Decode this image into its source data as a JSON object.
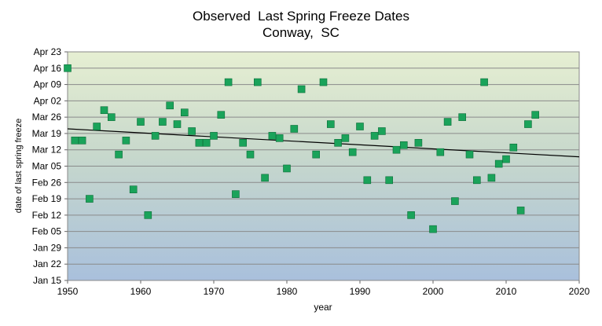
{
  "chart_data": {
    "type": "scatter",
    "title": "Observed  Last Spring Freeze Dates",
    "subtitle": "Conway,  SC",
    "xlabel": "year",
    "ylabel": "date of last spring freeze",
    "xlim": [
      1950,
      2020
    ],
    "xticks": [
      "1950",
      "1960",
      "1970",
      "1980",
      "1990",
      "2000",
      "2010",
      "2020"
    ],
    "ylim": [
      "Jan 15",
      "Apr 23"
    ],
    "yticks": [
      "Jan 15",
      "Jan 22",
      "Jan 29",
      "Feb 05",
      "Feb 12",
      "Feb 19",
      "Feb 26",
      "Mar 05",
      "Mar 12",
      "Mar 19",
      "Mar 26",
      "Apr 02",
      "Apr 09",
      "Apr 16",
      "Apr 23"
    ],
    "grid": true,
    "background": "gradient green to blue",
    "marker_color": "#1aa35a",
    "trendline": {
      "start": [
        1950,
        "Mar 21"
      ],
      "end": [
        2020,
        "Mar 09"
      ],
      "color": "#000000"
    },
    "points": [
      {
        "x": 1950,
        "y": "Apr 16"
      },
      {
        "x": 1951,
        "y": "Mar 16"
      },
      {
        "x": 1952,
        "y": "Mar 16"
      },
      {
        "x": 1953,
        "y": "Feb 19"
      },
      {
        "x": 1954,
        "y": "Mar 22"
      },
      {
        "x": 1955,
        "y": "Mar 29"
      },
      {
        "x": 1956,
        "y": "Mar 26"
      },
      {
        "x": 1957,
        "y": "Mar 10"
      },
      {
        "x": 1958,
        "y": "Mar 16"
      },
      {
        "x": 1959,
        "y": "Feb 23"
      },
      {
        "x": 1960,
        "y": "Mar 24"
      },
      {
        "x": 1961,
        "y": "Feb 12"
      },
      {
        "x": 1962,
        "y": "Mar 18"
      },
      {
        "x": 1963,
        "y": "Mar 24"
      },
      {
        "x": 1964,
        "y": "Mar 31"
      },
      {
        "x": 1965,
        "y": "Mar 23"
      },
      {
        "x": 1966,
        "y": "Mar 28"
      },
      {
        "x": 1967,
        "y": "Mar 20"
      },
      {
        "x": 1968,
        "y": "Mar 15"
      },
      {
        "x": 1969,
        "y": "Mar 15"
      },
      {
        "x": 1970,
        "y": "Mar 18"
      },
      {
        "x": 1971,
        "y": "Mar 27"
      },
      {
        "x": 1972,
        "y": "Apr 10"
      },
      {
        "x": 1973,
        "y": "Feb 21"
      },
      {
        "x": 1974,
        "y": "Mar 15"
      },
      {
        "x": 1975,
        "y": "Mar 10"
      },
      {
        "x": 1976,
        "y": "Apr 10"
      },
      {
        "x": 1977,
        "y": "Feb 28"
      },
      {
        "x": 1978,
        "y": "Mar 18"
      },
      {
        "x": 1979,
        "y": "Mar 17"
      },
      {
        "x": 1980,
        "y": "Mar 04"
      },
      {
        "x": 1981,
        "y": "Mar 21"
      },
      {
        "x": 1982,
        "y": "Apr 07"
      },
      {
        "x": 1984,
        "y": "Mar 10"
      },
      {
        "x": 1985,
        "y": "Apr 10"
      },
      {
        "x": 1986,
        "y": "Mar 23"
      },
      {
        "x": 1987,
        "y": "Mar 15"
      },
      {
        "x": 1988,
        "y": "Mar 17"
      },
      {
        "x": 1989,
        "y": "Mar 11"
      },
      {
        "x": 1990,
        "y": "Mar 22"
      },
      {
        "x": 1991,
        "y": "Feb 27"
      },
      {
        "x": 1992,
        "y": "Mar 18"
      },
      {
        "x": 1993,
        "y": "Mar 20"
      },
      {
        "x": 1994,
        "y": "Feb 27"
      },
      {
        "x": 1995,
        "y": "Mar 12"
      },
      {
        "x": 1996,
        "y": "Mar 14"
      },
      {
        "x": 1997,
        "y": "Feb 12"
      },
      {
        "x": 1998,
        "y": "Mar 15"
      },
      {
        "x": 2000,
        "y": "Feb 06"
      },
      {
        "x": 2001,
        "y": "Mar 11"
      },
      {
        "x": 2002,
        "y": "Mar 24"
      },
      {
        "x": 2003,
        "y": "Feb 18"
      },
      {
        "x": 2004,
        "y": "Mar 26"
      },
      {
        "x": 2005,
        "y": "Mar 10"
      },
      {
        "x": 2006,
        "y": "Feb 27"
      },
      {
        "x": 2007,
        "y": "Apr 10"
      },
      {
        "x": 2008,
        "y": "Feb 28"
      },
      {
        "x": 2009,
        "y": "Mar 06"
      },
      {
        "x": 2010,
        "y": "Mar 08"
      },
      {
        "x": 2011,
        "y": "Mar 13"
      },
      {
        "x": 2012,
        "y": "Feb 14"
      },
      {
        "x": 2013,
        "y": "Mar 23"
      },
      {
        "x": 2014,
        "y": "Mar 27"
      }
    ]
  }
}
